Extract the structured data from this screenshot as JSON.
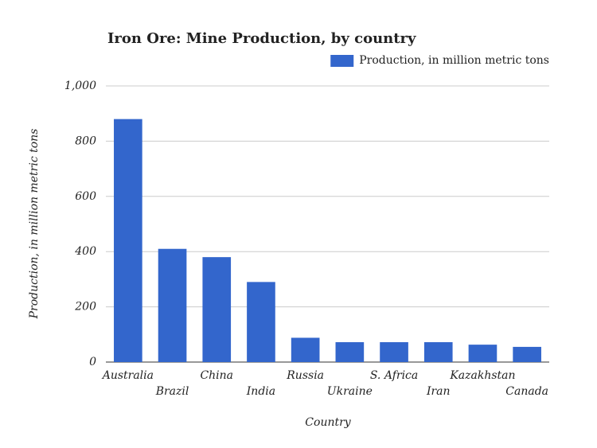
{
  "chart_data": {
    "type": "bar",
    "title": "Iron Ore: Mine Production, by country",
    "x_label": "Country",
    "y_label": "Production, in million metric tons",
    "categories": [
      "Australia",
      "Brazil",
      "China",
      "India",
      "Russia",
      "Ukraine",
      "S. Africa",
      "Iran",
      "Kazakhstan",
      "Canada"
    ],
    "series": [
      {
        "name": "Production, in million metric tons",
        "color": "#3366cc",
        "values": [
          880,
          410,
          380,
          290,
          88,
          72,
          72,
          72,
          63,
          55
        ]
      }
    ],
    "ylim": [
      0,
      1000
    ],
    "yticks": [
      0,
      200,
      400,
      600,
      800,
      {
        "value": 1000,
        "label": "1,000"
      }
    ],
    "grid": true,
    "legend": "top-right"
  }
}
